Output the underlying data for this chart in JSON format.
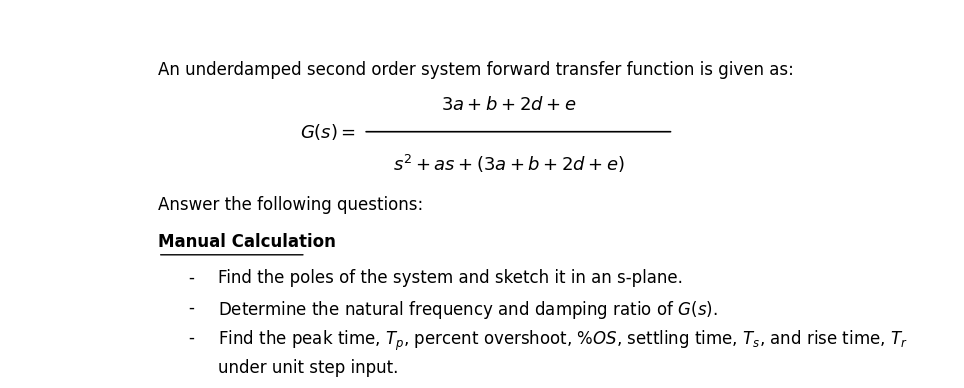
{
  "bg_color": "#ffffff",
  "text_color": "#000000",
  "fig_width": 9.64,
  "fig_height": 3.88,
  "dpi": 100,
  "line1": "An underdamped second order system forward transfer function is given as:",
  "answer_line": "Answer the following questions:",
  "section_heading": "Manual Calculation",
  "bullet1": "Find the poles of the system and sketch it in an s-plane.",
  "bullet4": "under unit step input.",
  "font_size_body": 12
}
